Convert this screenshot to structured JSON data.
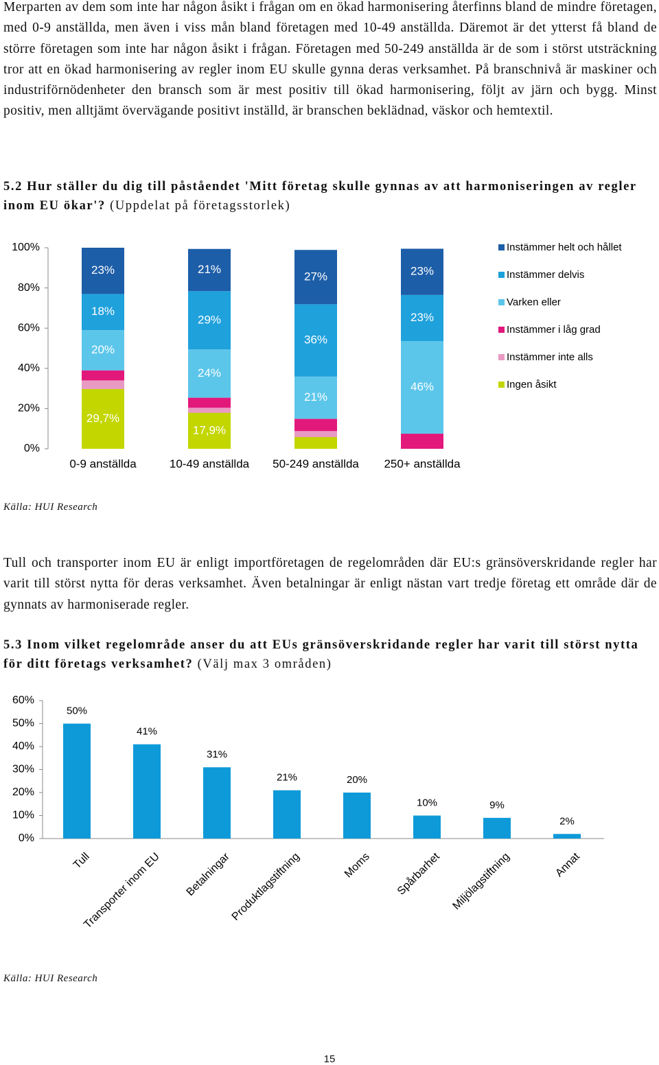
{
  "paragraphs": [
    "Merparten av dem som inte har någon åsikt i frågan om en ökad harmonisering återfinns bland de mindre företagen, med 0-9 anställda, men även i viss mån bland företagen med 10-49 anställda. Däremot är det ytterst få bland de större företagen som inte har någon åsikt i frågan. Företagen med 50-249 anställda är de som i störst utsträckning tror att en ökad harmonisering av regler inom EU skulle gynna deras verksamhet. På branschnivå är maskiner och industriförnödenheter den bransch som är mest positiv till ökad harmonisering, följt av järn och bygg. Minst positiv, men alltjämt övervägande positivt inställd, är branschen beklädnad, väskor och hemtextil.",
    "Tull och transporter inom EU är enligt importföretagen de regelområden där EU:s gränsöverskridande regler har varit till störst nytta för deras verksamhet. Även betalningar är enligt nästan vart tredje företag ett område där de gynnats av harmoniserade regler."
  ],
  "chart_data": [
    {
      "type": "stacked-bar",
      "title": "5.2 Hur ställer du dig till påståendet 'Mitt företag skulle gynnas av att harmoniseringen av regler inom EU ökar'?",
      "subtitle": "(Uppdelat på företagsstorlek)",
      "source": "Källa: HUI Research",
      "categories": [
        "0-9 anställda",
        "10-49 anställda",
        "50-249 anställda",
        "250+ anställda"
      ],
      "series": [
        {
          "name": "Ingen åsikt",
          "color": "#c3d600",
          "values": [
            29.7,
            17.9,
            5.8,
            0
          ],
          "value_labels": [
            "29,7%",
            "17,9%",
            null,
            null
          ]
        },
        {
          "name": "Instämmer inte alls",
          "color": "#e99ac2",
          "values": [
            4.3,
            2.5,
            3,
            0
          ],
          "value_labels": [
            null,
            null,
            null,
            null
          ]
        },
        {
          "name": "Instämmer i låg grad",
          "color": "#e2187b",
          "values": [
            5,
            5,
            6.1,
            7.5
          ],
          "value_labels": [
            null,
            null,
            null,
            null
          ]
        },
        {
          "name": "Varken eller",
          "color": "#5cc6ea",
          "values": [
            20,
            24,
            21,
            46
          ],
          "value_labels": [
            "20%",
            "24%",
            "21%",
            "46%"
          ]
        },
        {
          "name": "Instämmer delvis",
          "color": "#1fa1dc",
          "values": [
            18,
            29,
            36,
            23
          ],
          "value_labels": [
            "18%",
            "29%",
            "36%",
            "23%"
          ]
        },
        {
          "name": "Instämmer helt och hållet",
          "color": "#1d5ea8",
          "values": [
            23,
            21,
            27,
            23
          ],
          "value_labels": [
            "23%",
            "21%",
            "27%",
            "23%"
          ]
        }
      ],
      "ylim": [
        0,
        100
      ],
      "yticks": [
        {
          "value": 0,
          "label": "0%"
        },
        {
          "value": 20,
          "label": "20%"
        },
        {
          "value": 40,
          "label": "40%"
        },
        {
          "value": 60,
          "label": "60%"
        },
        {
          "value": 80,
          "label": "80%"
        },
        {
          "value": 100,
          "label": "100%"
        }
      ],
      "legend": "right"
    },
    {
      "type": "bar",
      "title": "5.3 Inom vilket regelområde anser du att EUs gränsöverskridande regler har varit till störst nytta för ditt företags verksamhet?",
      "subtitle": "(Välj max 3 områden)",
      "source": "Källa: HUI Research",
      "categories": [
        "Tull",
        "Transporter inom EU",
        "Betalningar",
        "Produktlagstiftning",
        "Moms",
        "Spårbarhet",
        "Miljölagstiftning",
        "Annat"
      ],
      "values": [
        50,
        41,
        31,
        21,
        20,
        10,
        9,
        2
      ],
      "value_labels": [
        "50%",
        "41%",
        "31%",
        "21%",
        "20%",
        "10%",
        "9%",
        "2%"
      ],
      "color": "#0e9ad9",
      "ylim": [
        0,
        60
      ],
      "yticks": [
        {
          "value": 0,
          "label": "0%"
        },
        {
          "value": 10,
          "label": "10%"
        },
        {
          "value": 20,
          "label": "20%"
        },
        {
          "value": 30,
          "label": "30%"
        },
        {
          "value": 40,
          "label": "40%"
        },
        {
          "value": 50,
          "label": "50%"
        },
        {
          "value": 60,
          "label": "60%"
        }
      ]
    }
  ],
  "page_number": "15"
}
